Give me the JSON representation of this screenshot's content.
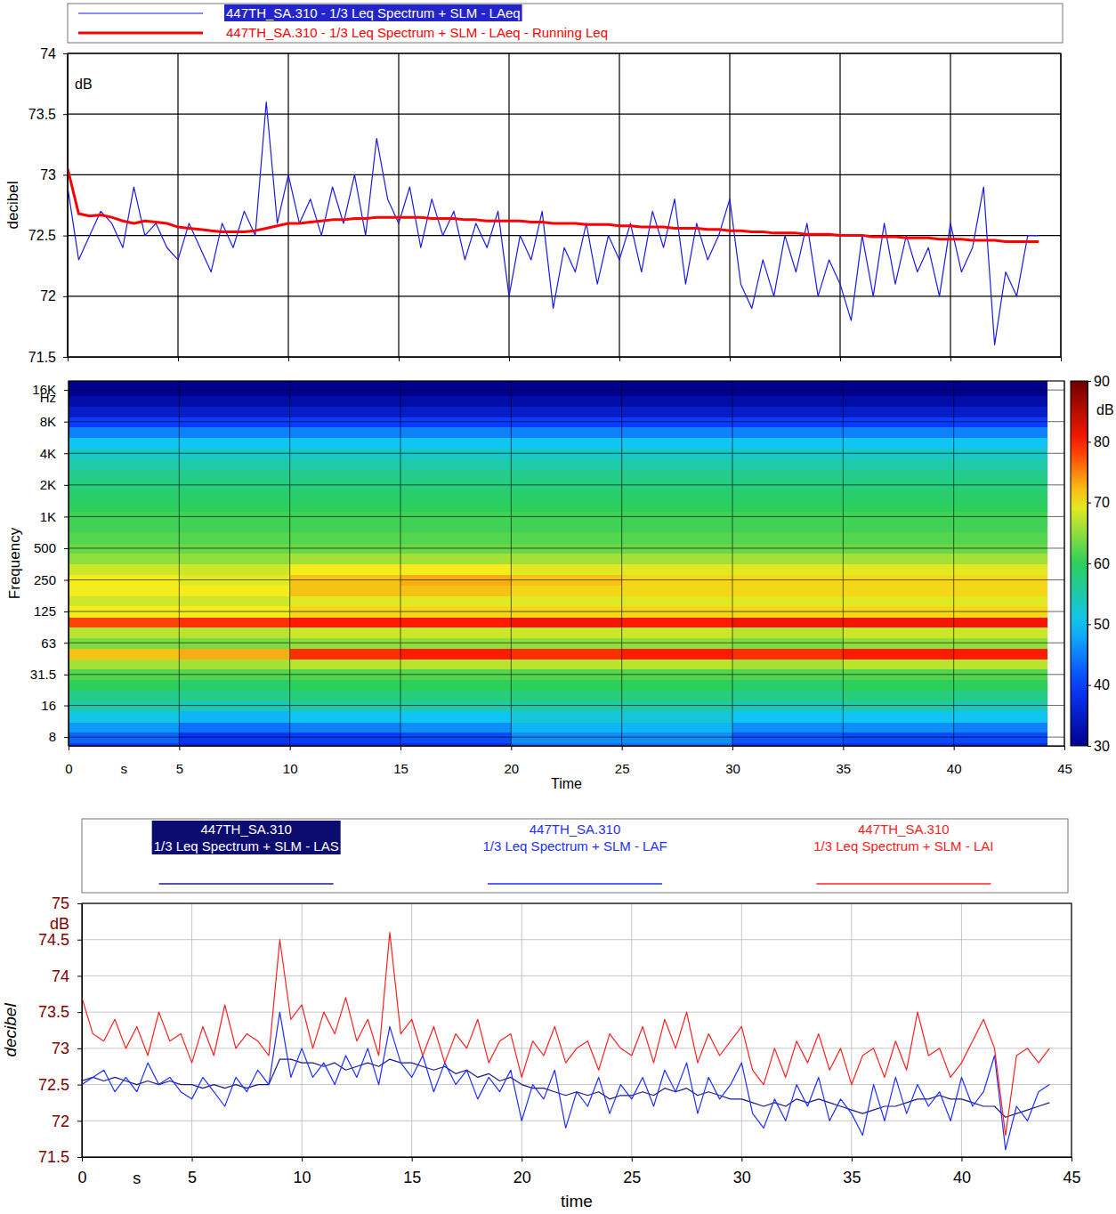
{
  "chart_data": [
    {
      "type": "line",
      "y_label": "decibel",
      "y_unit": "dB",
      "x": [
        0,
        0.5,
        1,
        1.5,
        2,
        2.5,
        3,
        3.5,
        4,
        4.5,
        5,
        5.5,
        6,
        6.5,
        7,
        7.5,
        8,
        8.5,
        9,
        9.5,
        10,
        10.5,
        11,
        11.5,
        12,
        12.5,
        13,
        13.5,
        14,
        14.5,
        15,
        15.5,
        16,
        16.5,
        17,
        17.5,
        18,
        18.5,
        19,
        19.5,
        20,
        20.5,
        21,
        21.5,
        22,
        22.5,
        23,
        23.5,
        24,
        24.5,
        25,
        25.5,
        26,
        26.5,
        27,
        27.5,
        28,
        28.5,
        29,
        29.5,
        30,
        30.5,
        31,
        31.5,
        32,
        32.5,
        33,
        33.5,
        34,
        34.5,
        35,
        35.5,
        36,
        36.5,
        37,
        37.5,
        38,
        38.5,
        39,
        39.5,
        40,
        40.5,
        41,
        41.5,
        42,
        42.5,
        43,
        43.5,
        44
      ],
      "series": [
        {
          "name": "447TH_SA.310 - 1/3 Leq Spectrum + SLM - LAeq",
          "color": "#1a1ae6",
          "line_style": "solid",
          "values": [
            72.9,
            72.3,
            72.5,
            72.7,
            72.6,
            72.4,
            72.9,
            72.5,
            72.6,
            72.4,
            72.3,
            72.6,
            72.4,
            72.2,
            72.6,
            72.4,
            72.7,
            72.5,
            73.6,
            72.6,
            73.0,
            72.6,
            72.8,
            72.5,
            72.9,
            72.6,
            73.0,
            72.5,
            73.3,
            72.8,
            72.6,
            72.9,
            72.4,
            72.8,
            72.5,
            72.7,
            72.3,
            72.6,
            72.4,
            72.7,
            72.0,
            72.5,
            72.3,
            72.7,
            71.9,
            72.4,
            72.2,
            72.6,
            72.1,
            72.5,
            72.3,
            72.6,
            72.2,
            72.7,
            72.4,
            72.8,
            72.1,
            72.6,
            72.3,
            72.5,
            72.8,
            72.1,
            71.9,
            72.3,
            72.0,
            72.5,
            72.2,
            72.6,
            72.0,
            72.3,
            72.1,
            71.8,
            72.5,
            72.0,
            72.6,
            72.1,
            72.5,
            72.2,
            72.4,
            72.0,
            72.6,
            72.2,
            72.4,
            72.9,
            71.6,
            72.2,
            72.0,
            72.5,
            72.5
          ]
        },
        {
          "name": "447TH_SA.310 - 1/3 Leq Spectrum + SLM - LAeq - Running Leq",
          "color": "#ff0000",
          "line_style": "bold",
          "values": [
            73.05,
            72.68,
            72.66,
            72.67,
            72.65,
            72.62,
            72.6,
            72.62,
            72.61,
            72.6,
            72.57,
            72.56,
            72.55,
            72.54,
            72.53,
            72.53,
            72.53,
            72.54,
            72.56,
            72.58,
            72.6,
            72.6,
            72.61,
            72.62,
            72.63,
            72.63,
            72.64,
            72.64,
            72.65,
            72.65,
            72.65,
            72.65,
            72.65,
            72.64,
            72.64,
            72.64,
            72.63,
            72.63,
            72.62,
            72.62,
            72.62,
            72.62,
            72.61,
            72.61,
            72.6,
            72.6,
            72.6,
            72.59,
            72.59,
            72.59,
            72.58,
            72.58,
            72.57,
            72.57,
            72.57,
            72.56,
            72.56,
            72.56,
            72.55,
            72.55,
            72.54,
            72.54,
            72.53,
            72.53,
            72.52,
            72.52,
            72.52,
            72.51,
            72.51,
            72.51,
            72.5,
            72.5,
            72.5,
            72.49,
            72.49,
            72.49,
            72.48,
            72.48,
            72.48,
            72.47,
            72.47,
            72.47,
            72.46,
            72.46,
            72.46,
            72.45,
            72.45,
            72.45,
            72.45
          ]
        }
      ],
      "xlim": [
        0,
        45
      ],
      "xticks": [
        0,
        5,
        10,
        15,
        20,
        25,
        30,
        35,
        40,
        45
      ],
      "ylim": [
        71.5,
        74
      ],
      "yticks": [
        71.5,
        72,
        72.5,
        73,
        73.5,
        74
      ],
      "grid": true,
      "legend": "top",
      "tick_labels": "y"
    },
    {
      "type": "heatmap",
      "x_label": "Time",
      "x_unit": "s",
      "y_label": "Frequency",
      "y_unit": "Hz",
      "x_edges": [
        0,
        5,
        10,
        15,
        20,
        25,
        30,
        35,
        40,
        44.2
      ],
      "y": [
        6.3,
        8,
        10,
        12.5,
        16,
        20,
        25,
        31.5,
        40,
        50,
        63,
        80,
        100,
        125,
        160,
        200,
        250,
        315,
        400,
        500,
        630,
        800,
        1000,
        1250,
        1600,
        2000,
        2500,
        3150,
        4000,
        5000,
        6300,
        8000,
        10000,
        12500,
        16000,
        20000
      ],
      "values": [
        [
          40,
          37,
          38,
          38,
          44,
          44,
          40,
          39,
          38
        ],
        [
          43,
          39,
          40,
          41,
          46,
          46,
          42,
          41,
          41
        ],
        [
          47,
          44,
          45,
          46,
          49,
          49,
          46,
          46,
          45
        ],
        [
          51,
          49,
          50,
          50,
          52,
          52,
          50,
          50,
          50
        ],
        [
          55,
          54,
          55,
          55,
          55,
          55,
          54,
          55,
          54
        ],
        [
          57,
          57,
          58,
          58,
          58,
          58,
          57,
          58,
          57
        ],
        [
          60,
          59,
          60,
          60,
          60,
          60,
          59,
          60,
          60
        ],
        [
          62,
          62,
          62,
          62,
          62,
          62,
          62,
          62,
          62
        ],
        [
          66,
          66,
          67,
          67,
          67,
          67,
          66,
          67,
          67
        ],
        [
          72,
          73,
          79,
          80,
          79,
          80,
          79,
          80,
          80
        ],
        [
          64,
          64,
          65,
          65,
          65,
          65,
          64,
          65,
          65
        ],
        [
          67,
          67,
          68,
          68,
          68,
          68,
          67,
          68,
          68
        ],
        [
          78,
          79,
          80,
          80,
          81,
          80,
          81,
          81,
          81
        ],
        [
          70,
          70,
          71,
          71,
          71,
          71,
          71,
          71,
          71
        ],
        [
          68,
          68,
          69,
          69,
          69,
          69,
          69,
          69,
          69
        ],
        [
          70,
          70,
          72,
          72,
          71,
          71,
          71,
          71,
          71
        ],
        [
          70,
          69,
          72,
          73,
          72,
          71,
          71,
          71,
          71
        ],
        [
          68,
          68,
          70,
          70,
          69,
          69,
          69,
          69,
          69
        ],
        [
          65,
          65,
          66,
          66,
          66,
          66,
          66,
          66,
          66
        ],
        [
          63,
          63,
          63,
          63,
          63,
          63,
          63,
          63,
          63
        ],
        [
          62,
          62,
          62,
          62,
          62,
          62,
          62,
          62,
          62
        ],
        [
          61,
          61,
          61,
          61,
          61,
          61,
          61,
          61,
          61
        ],
        [
          61,
          61,
          61,
          61,
          61,
          61,
          61,
          61,
          61
        ],
        [
          60,
          60,
          60,
          60,
          60,
          60,
          60,
          60,
          60
        ],
        [
          59,
          59,
          59,
          59,
          59,
          59,
          59,
          59,
          59
        ],
        [
          58,
          58,
          58,
          58,
          58,
          58,
          58,
          58,
          58
        ],
        [
          57,
          57,
          57,
          57,
          57,
          57,
          57,
          57,
          57
        ],
        [
          55,
          55,
          55,
          55,
          55,
          55,
          55,
          55,
          55
        ],
        [
          53,
          53,
          53,
          53,
          53,
          53,
          53,
          53,
          53
        ],
        [
          50,
          50,
          50,
          50,
          50,
          50,
          50,
          50,
          50
        ],
        [
          45,
          45,
          45,
          45,
          45,
          45,
          45,
          45,
          45
        ],
        [
          40,
          40,
          40,
          40,
          40,
          40,
          40,
          40,
          40
        ],
        [
          35,
          35,
          35,
          35,
          35,
          35,
          35,
          35,
          35
        ],
        [
          32,
          32,
          32,
          32,
          32,
          32,
          32,
          32,
          32
        ],
        [
          30,
          30,
          30,
          30,
          30,
          30,
          30,
          30,
          30
        ],
        [
          30,
          30,
          30,
          30,
          30,
          30,
          30,
          30,
          30
        ]
      ],
      "xlim": [
        0,
        45
      ],
      "xticks": [
        0,
        5,
        10,
        15,
        20,
        25,
        30,
        35,
        40,
        45
      ],
      "ylim": [
        6.6,
        19500
      ],
      "yticks": [
        8,
        16,
        31.5,
        63,
        125,
        250,
        500,
        {
          "value": 1000,
          "label": "1K"
        },
        {
          "value": 2000,
          "label": "2K"
        },
        {
          "value": 4000,
          "label": "4K"
        },
        {
          "value": 8000,
          "label": "8K"
        },
        {
          "value": 16000,
          "label": "16K"
        }
      ],
      "log": "y",
      "grid": true,
      "colorbar": {
        "range": [
          30,
          90
        ],
        "ticks": [
          30,
          40,
          50,
          60,
          70,
          80,
          90
        ],
        "label": "dB"
      }
    },
    {
      "type": "line",
      "x_label": "time",
      "x_unit": "s",
      "y_label": "decibel",
      "y_unit": "dB",
      "x": [
        0,
        0.5,
        1,
        1.5,
        2,
        2.5,
        3,
        3.5,
        4,
        4.5,
        5,
        5.5,
        6,
        6.5,
        7,
        7.5,
        8,
        8.5,
        9,
        9.5,
        10,
        10.5,
        11,
        11.5,
        12,
        12.5,
        13,
        13.5,
        14,
        14.5,
        15,
        15.5,
        16,
        16.5,
        17,
        17.5,
        18,
        18.5,
        19,
        19.5,
        20,
        20.5,
        21,
        21.5,
        22,
        22.5,
        23,
        23.5,
        24,
        24.5,
        25,
        25.5,
        26,
        26.5,
        27,
        27.5,
        28,
        28.5,
        29,
        29.5,
        30,
        30.5,
        31,
        31.5,
        32,
        32.5,
        33,
        33.5,
        34,
        34.5,
        35,
        35.5,
        36,
        36.5,
        37,
        37.5,
        38,
        38.5,
        39,
        39.5,
        40,
        40.5,
        41,
        41.5,
        42,
        42.5,
        43,
        43.5,
        44
      ],
      "series": [
        {
          "name": "447TH_SA.310 1/3 Leq Spectrum + SLM - LAS",
          "color": "#1a1a8c",
          "line_style": "solid",
          "values": [
            72.55,
            72.6,
            72.55,
            72.6,
            72.55,
            72.5,
            72.55,
            72.5,
            72.55,
            72.5,
            72.5,
            72.45,
            72.5,
            72.45,
            72.5,
            72.45,
            72.5,
            72.5,
            72.85,
            72.85,
            72.8,
            72.8,
            72.75,
            72.8,
            72.7,
            72.75,
            72.8,
            72.75,
            72.85,
            72.8,
            72.8,
            72.75,
            72.7,
            72.75,
            72.65,
            72.7,
            72.6,
            72.65,
            72.55,
            72.6,
            72.5,
            72.45,
            72.45,
            72.4,
            72.35,
            72.4,
            72.35,
            72.4,
            72.3,
            72.35,
            72.35,
            72.4,
            72.35,
            72.45,
            72.4,
            72.45,
            72.35,
            72.4,
            72.35,
            72.3,
            72.3,
            72.25,
            72.2,
            72.25,
            72.2,
            72.3,
            72.25,
            72.3,
            72.25,
            72.2,
            72.15,
            72.1,
            72.15,
            72.2,
            72.2,
            72.25,
            72.3,
            72.3,
            72.35,
            72.3,
            72.3,
            72.25,
            72.2,
            72.2,
            72.05,
            72.1,
            72.15,
            72.2,
            72.25
          ]
        },
        {
          "name": "447TH_SA.310 1/3 Leq Spectrum + SLM - LAF",
          "color": "#1f2fff",
          "line_style": "solid",
          "values": [
            72.5,
            72.6,
            72.7,
            72.4,
            72.6,
            72.4,
            72.8,
            72.5,
            72.6,
            72.4,
            72.3,
            72.6,
            72.4,
            72.2,
            72.6,
            72.4,
            72.7,
            72.5,
            73.5,
            72.6,
            73.0,
            72.6,
            72.8,
            72.5,
            72.9,
            72.6,
            73.0,
            72.5,
            73.3,
            72.8,
            72.6,
            72.9,
            72.4,
            72.8,
            72.5,
            72.7,
            72.3,
            72.6,
            72.4,
            72.7,
            72.0,
            72.5,
            72.3,
            72.7,
            71.9,
            72.4,
            72.2,
            72.6,
            72.1,
            72.5,
            72.3,
            72.6,
            72.2,
            72.7,
            72.4,
            72.8,
            72.1,
            72.6,
            72.3,
            72.5,
            72.8,
            72.1,
            71.9,
            72.3,
            72.0,
            72.5,
            72.2,
            72.6,
            72.0,
            72.3,
            72.1,
            71.8,
            72.5,
            72.0,
            72.6,
            72.1,
            72.5,
            72.2,
            72.4,
            72.0,
            72.6,
            72.2,
            72.4,
            72.9,
            71.6,
            72.2,
            72.0,
            72.4,
            72.5
          ]
        },
        {
          "name": "447TH_SA.310 1/3 Leq Spectrum + SLM - LAI",
          "color": "#ff2020",
          "line_style": "solid",
          "values": [
            73.7,
            73.2,
            73.1,
            73.4,
            73.0,
            73.3,
            72.9,
            73.5,
            73.1,
            73.2,
            72.8,
            73.3,
            72.9,
            73.6,
            73.0,
            73.2,
            73.1,
            72.9,
            74.5,
            73.4,
            73.6,
            73.0,
            73.5,
            73.2,
            73.7,
            73.1,
            73.4,
            72.9,
            74.6,
            73.2,
            73.4,
            72.9,
            73.3,
            72.8,
            73.2,
            73.0,
            73.4,
            72.8,
            73.1,
            73.2,
            72.6,
            73.1,
            72.9,
            73.3,
            72.8,
            73.0,
            73.1,
            72.7,
            73.2,
            73.0,
            72.9,
            73.3,
            72.8,
            73.4,
            73.0,
            73.5,
            72.8,
            73.2,
            72.9,
            73.1,
            73.3,
            72.7,
            72.5,
            73.0,
            72.6,
            73.1,
            72.8,
            73.2,
            72.7,
            73.0,
            72.5,
            72.9,
            73.0,
            72.6,
            73.1,
            72.7,
            73.5,
            72.9,
            73.0,
            72.6,
            72.8,
            73.1,
            73.4,
            73.0,
            71.8,
            72.9,
            73.0,
            72.8,
            73.0
          ]
        }
      ],
      "xlim": [
        0,
        45
      ],
      "xticks": [
        0,
        5,
        10,
        15,
        20,
        25,
        30,
        35,
        40,
        45
      ],
      "ylim": [
        71.5,
        75
      ],
      "yticks": [
        71.5,
        72,
        72.5,
        73,
        73.5,
        74,
        74.5,
        75
      ],
      "grid": true,
      "legend": "top"
    }
  ]
}
